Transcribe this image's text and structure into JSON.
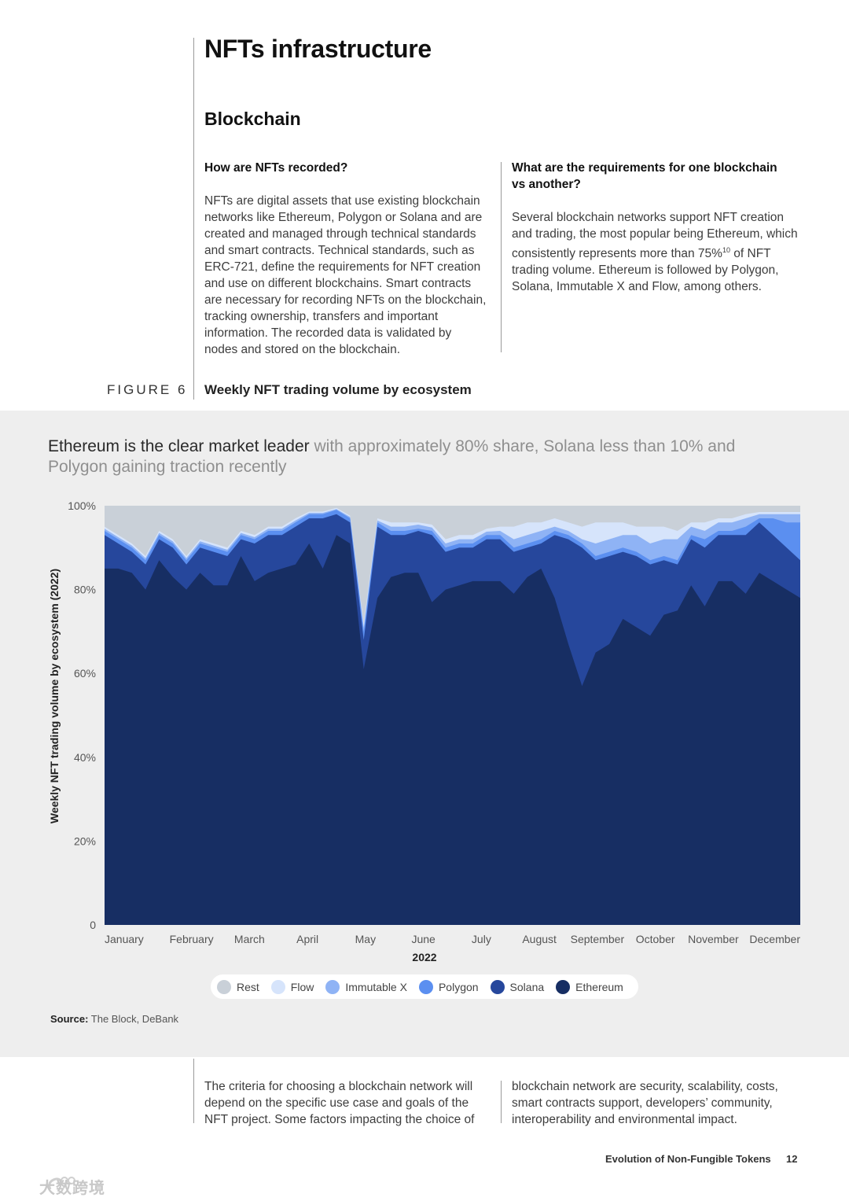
{
  "page": {
    "title": "NFTs infrastructure",
    "section": "Blockchain",
    "col1": {
      "heading": "How are NFTs recorded?",
      "lines": [
        "NFTs are digital assets that use existing blockchain",
        "networks like Ethereum, Polygon or Solana and are",
        "created and managed through technical standards",
        "and smart contracts. Technical standards, such as",
        "ERC-721, define the requirements for NFT creation",
        "and use on different blockchains. Smart contracts",
        "are necessary for recording NFTs on the blockchain,",
        "tracking ownership, transfers and important",
        "information. The recorded data is validated by",
        "nodes and stored on the blockchain."
      ]
    },
    "col2": {
      "heading_line1": "What are the requirements for one blockchain",
      "heading_line2": "vs another?",
      "line1": "Several blockchain networks support NFT creation",
      "line2": "and trading, the most popular being Ethereum, which",
      "line3_pre": "consistently represents more than 75%",
      "line3_sup": "10",
      "line3_post": " of NFT",
      "line4": "trading volume. Ethereum is followed by Polygon,",
      "line5": "Solana, Immutable X and Flow, among others."
    },
    "figure_label": "FIGURE 6",
    "figure_title": "Weekly NFT trading volume by ecosystem",
    "headline_strong": "Ethereum is the clear market leader",
    "headline_muted": " with approximately 80% share, Solana less than 10% and Polygon gaining traction recently",
    "source_label": "Source:",
    "source_text": " The Block, DeBank",
    "bottom_col1": [
      "The criteria for choosing a blockchain network will",
      "depend on the specific use case and goals of the",
      "NFT project. Some factors impacting the choice of"
    ],
    "bottom_col2": [
      "blockchain network are security, scalability, costs,",
      "smart contracts support, developers’ community,",
      "interoperability and environmental impact."
    ],
    "footer": "Evolution of Non-Fungible Tokens",
    "page_number": "12",
    "watermark": "大数跨境"
  },
  "chart_data": {
    "type": "area",
    "stacked": true,
    "title": "Weekly NFT trading volume by ecosystem",
    "ylabel": "Weekly NFT trading volume by ecosystem (2022)",
    "xlabel": "2022",
    "ylim": [
      0,
      100
    ],
    "yticks": [
      "0",
      "20%",
      "40%",
      "60%",
      "80%",
      "100%"
    ],
    "month_labels": [
      "January",
      "February",
      "March",
      "April",
      "May",
      "June",
      "July",
      "August",
      "September",
      "October",
      "November",
      "December"
    ],
    "week_count": 52,
    "colors": {
      "Rest": "#c9d0d8",
      "Flow": "#d6e4fb",
      "Immutable X": "#8fb3f5",
      "Polygon": "#5b8ff0",
      "Solana": "#26479c",
      "Ethereum": "#172e63"
    },
    "legend": [
      "Rest",
      "Flow",
      "Immutable X",
      "Polygon",
      "Solana",
      "Ethereum"
    ],
    "cumulative_tops": {
      "Ethereum": [
        85,
        85,
        84,
        80,
        87,
        83,
        80,
        84,
        81,
        81,
        88,
        82,
        84,
        85,
        86,
        91,
        85,
        93,
        91,
        61,
        78,
        83,
        84,
        84,
        77,
        80,
        81,
        82,
        82,
        82,
        79,
        83,
        85,
        78,
        67,
        57,
        65,
        67,
        73,
        71,
        69,
        74,
        75,
        81,
        76,
        82,
        82,
        79,
        84,
        82,
        80,
        78
      ],
      "Solana": [
        93,
        91,
        89,
        86,
        92,
        90,
        86,
        90,
        89,
        88,
        92,
        91,
        93,
        93,
        95,
        97,
        97,
        98,
        96,
        68,
        95,
        93,
        93,
        94,
        93,
        89,
        90,
        90,
        92,
        92,
        89,
        90,
        91,
        93,
        92,
        90,
        87,
        88,
        89,
        88,
        86,
        87,
        86,
        92,
        90,
        93,
        93,
        93,
        96,
        93,
        90,
        87
      ],
      "Polygon": [
        94,
        92,
        90,
        87,
        93,
        91,
        87,
        91,
        90,
        89,
        93,
        92,
        94,
        94,
        96,
        98,
        98,
        99,
        97,
        70,
        96,
        94,
        94,
        94.5,
        94,
        90,
        91,
        91,
        93,
        93,
        90,
        91,
        92,
        94,
        93,
        91,
        88,
        89,
        90,
        89,
        87,
        88,
        87,
        93,
        92,
        94,
        94,
        95,
        97,
        97,
        96,
        96
      ],
      "Immutable X": [
        94.5,
        92.5,
        90.5,
        87.5,
        93.5,
        91.5,
        87.5,
        91.5,
        90.5,
        89.5,
        93.5,
        92.5,
        94.5,
        94.5,
        96.5,
        98.3,
        98.3,
        99.2,
        97.3,
        71,
        96.5,
        95,
        95,
        95.5,
        94.8,
        91,
        92,
        92,
        93.8,
        94,
        92,
        93,
        94,
        95,
        94,
        92,
        91,
        92,
        93,
        93,
        91,
        92,
        92,
        95,
        94,
        96,
        96,
        97,
        98,
        98,
        98,
        98
      ],
      "Flow": [
        95,
        93,
        91,
        88,
        94,
        92,
        88,
        92,
        91,
        90,
        94,
        93,
        95,
        95,
        97,
        98.6,
        98.6,
        99.5,
        97.6,
        72,
        97,
        96,
        96,
        96,
        95.5,
        92,
        93,
        93,
        94.5,
        95,
        95,
        96,
        96,
        97,
        96,
        95,
        96,
        96,
        96,
        95,
        95,
        95,
        94,
        96,
        96,
        97,
        97,
        98,
        98.5,
        98.5,
        98.5,
        98.5
      ],
      "Rest": [
        100,
        100,
        100,
        100,
        100,
        100,
        100,
        100,
        100,
        100,
        100,
        100,
        100,
        100,
        100,
        100,
        100,
        100,
        100,
        100,
        100,
        100,
        100,
        100,
        100,
        100,
        100,
        100,
        100,
        100,
        100,
        100,
        100,
        100,
        100,
        100,
        100,
        100,
        100,
        100,
        100,
        100,
        100,
        100,
        100,
        100,
        100,
        100,
        100,
        100,
        100,
        100
      ]
    }
  }
}
